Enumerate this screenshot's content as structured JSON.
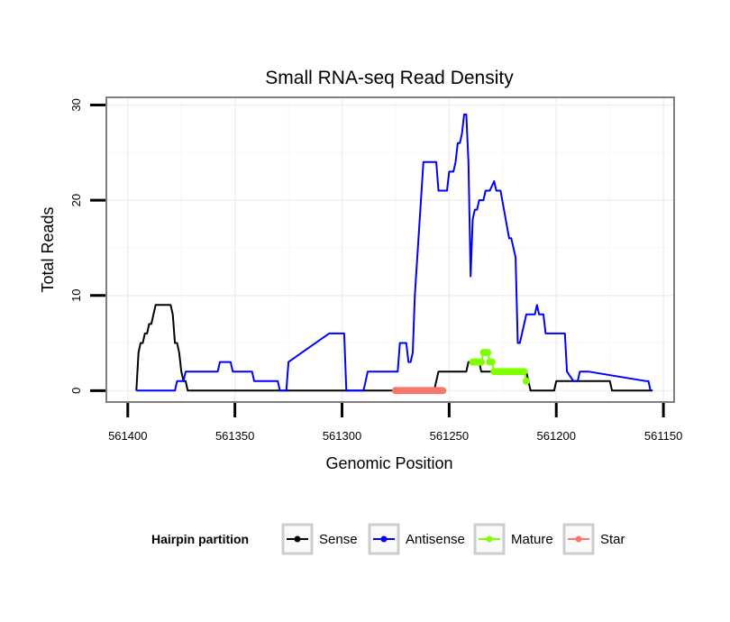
{
  "chart_data": {
    "type": "line",
    "title": "Small RNA-seq Read Density",
    "xlabel": "Genomic Position",
    "ylabel": "Total Reads",
    "xlim": [
      561410,
      561145
    ],
    "ylim": [
      -1.2,
      30.8
    ],
    "x_reversed": true,
    "grid": true,
    "x_ticks": [
      561400,
      561350,
      561300,
      561250,
      561200,
      561150
    ],
    "x_tick_labels": [
      "561400",
      "561350",
      "561300",
      "561250",
      "561200",
      "561150"
    ],
    "y_ticks": [
      0,
      10,
      20,
      30
    ],
    "y_tick_labels": [
      "0",
      "10",
      "20",
      "30"
    ],
    "legend": {
      "title": "Hairpin partition",
      "position": "bottom"
    },
    "series": [
      {
        "name": "Sense",
        "color": "#000000",
        "style": "line",
        "x": [
          561396,
          561395,
          561394,
          561393,
          561392,
          561391,
          561390,
          561389,
          561388,
          561387,
          561386,
          561385,
          561384,
          561383,
          561382,
          561381,
          561380,
          561379,
          561378,
          561377,
          561376,
          561375,
          561374,
          561373,
          561372,
          561370,
          561260,
          561259,
          561258,
          561257,
          561256,
          561255,
          561254,
          561243,
          561242,
          561241,
          561240,
          561239,
          561238,
          561237,
          561236,
          561235,
          561214,
          561213,
          561212,
          561211,
          561201,
          561200,
          561199,
          561175,
          561174,
          561173,
          561155
        ],
        "y": [
          0,
          4,
          5,
          5,
          6,
          6,
          7,
          7,
          8,
          9,
          9,
          9,
          9,
          9,
          9,
          9,
          9,
          8,
          5,
          5,
          4,
          2,
          1,
          1,
          0,
          0,
          0,
          0,
          0,
          0,
          1,
          2,
          2,
          2,
          2,
          3,
          3,
          3,
          3,
          3,
          3,
          2,
          2,
          1,
          0,
          0,
          0,
          1,
          1,
          1,
          0,
          0,
          0
        ]
      },
      {
        "name": "Antisense",
        "color": "#0000ff",
        "style": "line",
        "x": [
          561396,
          561378,
          561377,
          561374,
          561373,
          561368,
          561367,
          561358,
          561357,
          561352,
          561351,
          561342,
          561341,
          561330,
          561329,
          561328,
          561327,
          561326,
          561325,
          561306,
          561305,
          561304,
          561303,
          561301,
          561300,
          561299,
          561298,
          561290,
          561289,
          561288,
          561287,
          561274,
          561273,
          561271,
          561270,
          561269,
          561268,
          561267,
          561266,
          561262,
          561261,
          561256,
          561255,
          561251,
          561250,
          561249,
          561248,
          561247,
          561246,
          561245,
          561244,
          561243,
          561242,
          561241,
          561240,
          561239,
          561238,
          561237,
          561236,
          561234,
          561233,
          561232,
          561231,
          561229,
          561228,
          561227,
          561226,
          561222,
          561221,
          561219,
          561218,
          561217,
          561216,
          561215,
          561214,
          561211,
          561210,
          561209,
          561208,
          561206,
          561205,
          561204,
          561203,
          561196,
          561195,
          561192,
          561191,
          561190,
          561189,
          561185,
          561158,
          561157,
          561156
        ],
        "y": [
          0,
          0,
          1,
          1,
          2,
          2,
          2,
          2,
          3,
          3,
          2,
          2,
          1,
          1,
          0,
          0,
          0,
          0,
          3,
          6,
          6,
          6,
          6,
          6,
          6,
          6,
          0,
          0,
          1,
          2,
          2,
          2,
          5,
          5,
          5,
          3,
          3,
          4,
          10,
          24,
          24,
          24,
          21,
          21,
          23,
          23,
          23,
          24,
          26,
          26,
          27,
          29,
          29,
          24,
          12,
          18,
          19,
          19,
          20,
          20,
          21,
          21,
          21,
          22,
          21,
          21,
          21,
          16,
          16,
          14,
          5,
          5,
          6,
          7,
          8,
          8,
          8,
          9,
          8,
          8,
          6,
          6,
          6,
          6,
          2,
          1,
          1,
          1,
          2,
          2,
          1,
          1,
          0
        ]
      },
      {
        "name": "Mature",
        "color": "#7fff00",
        "style": "points",
        "x": [
          561239,
          561238,
          561237,
          561236,
          561235,
          561234,
          561233,
          561232,
          561231,
          561230,
          561229,
          561228,
          561227,
          561226,
          561225,
          561224,
          561223,
          561222,
          561221,
          561220,
          561219,
          561218,
          561217,
          561216,
          561215,
          561214
        ],
        "y": [
          3,
          3,
          3,
          3,
          3,
          4,
          4,
          4,
          3,
          3,
          2,
          2,
          2,
          2,
          2,
          2,
          2,
          2,
          2,
          2,
          2,
          2,
          2,
          2,
          2,
          1
        ]
      },
      {
        "name": "Star",
        "color": "#f8766d",
        "style": "points",
        "x": [
          561275,
          561274,
          561273,
          561272,
          561271,
          561270,
          561269,
          561268,
          561267,
          561266,
          561265,
          561264,
          561263,
          561262,
          561261,
          561260,
          561259,
          561258,
          561257,
          561256,
          561255,
          561254,
          561253
        ],
        "y": [
          0,
          0,
          0,
          0,
          0,
          0,
          0,
          0,
          0,
          0,
          0,
          0,
          0,
          0,
          0,
          0,
          0,
          0,
          0,
          0,
          0,
          0,
          0
        ]
      }
    ]
  }
}
